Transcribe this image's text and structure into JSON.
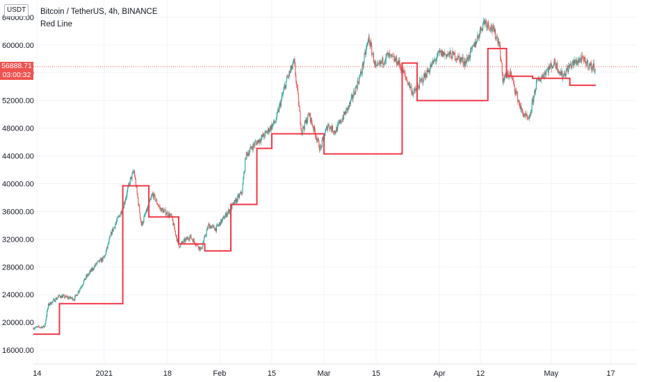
{
  "header": {
    "currency": "USDT",
    "symbol_line": "Bitcoin / TetherUS, 4h, BINANCE",
    "indicator_name": "Red Line"
  },
  "last_price": {
    "value": 56888.71,
    "label": "56888.71",
    "countdown": "03:00:32",
    "color": "#ef5350"
  },
  "colors": {
    "up": "#26a69a",
    "down": "#ef5350",
    "line": "#f23645",
    "grid": "#f0f3fa",
    "axis_text": "#131722"
  },
  "chart_data": {
    "type": "candlestick",
    "title": "Bitcoin / TetherUS, 4h, BINANCE",
    "ylim": [
      14000,
      66500
    ],
    "y_ticks": [
      16000,
      20000,
      24000,
      28000,
      32000,
      36000,
      40000,
      44000,
      48000,
      52000,
      56000,
      60000,
      64000
    ],
    "y_tick_labels": [
      "16000.00",
      "20000.00",
      "24000.00",
      "28000.00",
      "32000.00",
      "36000.00",
      "40000.00",
      "44000.00",
      "48000.00",
      "52000.00",
      "56000.00",
      "60000.00",
      "64000.00"
    ],
    "top_partial_label": "6...",
    "x_range": [
      "2020-12-13",
      "2021-05-24"
    ],
    "x_ticks": [
      {
        "date": "2020-12-14",
        "label": "14"
      },
      {
        "date": "2021-01-01",
        "label": "2021"
      },
      {
        "date": "2021-01-18",
        "label": "18"
      },
      {
        "date": "2021-02-01",
        "label": "Feb"
      },
      {
        "date": "2021-02-15",
        "label": "15"
      },
      {
        "date": "2021-03-01",
        "label": "Mar"
      },
      {
        "date": "2021-03-15",
        "label": "15"
      },
      {
        "date": "2021-04-01",
        "label": "Apr"
      },
      {
        "date": "2021-04-12",
        "label": "12"
      },
      {
        "date": "2021-05-01",
        "label": "May"
      },
      {
        "date": "2021-05-17",
        "label": "17"
      }
    ],
    "price_path": [
      [
        "2020-12-13",
        19200
      ],
      [
        "2020-12-16",
        19400
      ],
      [
        "2020-12-17",
        22500
      ],
      [
        "2020-12-20",
        23800
      ],
      [
        "2020-12-24",
        23400
      ],
      [
        "2020-12-27",
        26400
      ],
      [
        "2020-12-30",
        28500
      ],
      [
        "2021-01-01",
        29300
      ],
      [
        "2021-01-03",
        33000
      ],
      [
        "2021-01-06",
        36500
      ],
      [
        "2021-01-08",
        40500
      ],
      [
        "2021-01-09",
        41800
      ],
      [
        "2021-01-11",
        34000
      ],
      [
        "2021-01-12",
        35500
      ],
      [
        "2021-01-14",
        38500
      ],
      [
        "2021-01-16",
        36400
      ],
      [
        "2021-01-19",
        35300
      ],
      [
        "2021-01-21",
        31000
      ],
      [
        "2021-01-24",
        32400
      ],
      [
        "2021-01-27",
        30500
      ],
      [
        "2021-01-29",
        34000
      ],
      [
        "2021-01-31",
        33500
      ],
      [
        "2021-02-04",
        36500
      ],
      [
        "2021-02-07",
        38800
      ],
      [
        "2021-02-08",
        44000
      ],
      [
        "2021-02-10",
        45500
      ],
      [
        "2021-02-13",
        47000
      ],
      [
        "2021-02-16",
        49000
      ],
      [
        "2021-02-19",
        55000
      ],
      [
        "2021-02-21",
        57500
      ],
      [
        "2021-02-23",
        47500
      ],
      [
        "2021-02-25",
        50000
      ],
      [
        "2021-02-28",
        45000
      ],
      [
        "2021-03-02",
        48500
      ],
      [
        "2021-03-04",
        47500
      ],
      [
        "2021-03-08",
        51500
      ],
      [
        "2021-03-11",
        56000
      ],
      [
        "2021-03-13",
        61000
      ],
      [
        "2021-03-15",
        56500
      ],
      [
        "2021-03-18",
        58500
      ],
      [
        "2021-03-21",
        57500
      ],
      [
        "2021-03-25",
        53000
      ],
      [
        "2021-03-28",
        55500
      ],
      [
        "2021-04-01",
        58800
      ],
      [
        "2021-04-05",
        58500
      ],
      [
        "2021-04-08",
        57500
      ],
      [
        "2021-04-10",
        59500
      ],
      [
        "2021-04-13",
        63500
      ],
      [
        "2021-04-15",
        62500
      ],
      [
        "2021-04-17",
        60500
      ],
      [
        "2021-04-18",
        55000
      ],
      [
        "2021-04-20",
        56000
      ],
      [
        "2021-04-23",
        50500
      ],
      [
        "2021-04-25",
        49000
      ],
      [
        "2021-04-27",
        54500
      ],
      [
        "2021-04-30",
        56500
      ],
      [
        "2021-05-02",
        57500
      ],
      [
        "2021-05-04",
        55500
      ],
      [
        "2021-05-06",
        57000
      ],
      [
        "2021-05-09",
        58000
      ],
      [
        "2021-05-12",
        56800
      ],
      [
        "2021-05-13",
        56888
      ]
    ],
    "red_line_steps": [
      {
        "from": "2020-12-13",
        "to": "2020-12-20",
        "value": 18300
      },
      {
        "from": "2020-12-20",
        "to": "2021-01-06",
        "value": 22700
      },
      {
        "from": "2021-01-06",
        "to": "2021-01-13",
        "value": 39700
      },
      {
        "from": "2021-01-13",
        "to": "2021-01-21",
        "value": 35200
      },
      {
        "from": "2021-01-21",
        "to": "2021-01-28",
        "value": 31300
      },
      {
        "from": "2021-01-28",
        "to": "2021-02-04",
        "value": 30300
      },
      {
        "from": "2021-02-04",
        "to": "2021-02-11",
        "value": 37000
      },
      {
        "from": "2021-02-11",
        "to": "2021-02-15",
        "value": 45100
      },
      {
        "from": "2021-02-15",
        "to": "2021-03-01",
        "value": 47200
      },
      {
        "from": "2021-03-01",
        "to": "2021-03-22",
        "value": 44300
      },
      {
        "from": "2021-03-22",
        "to": "2021-03-26",
        "value": 57400
      },
      {
        "from": "2021-03-26",
        "to": "2021-04-14",
        "value": 52000
      },
      {
        "from": "2021-04-14",
        "to": "2021-04-19",
        "value": 59500
      },
      {
        "from": "2021-04-19",
        "to": "2021-04-26",
        "value": 55500
      },
      {
        "from": "2021-04-26",
        "to": "2021-05-06",
        "value": 55200
      },
      {
        "from": "2021-05-06",
        "to": "2021-05-13",
        "value": 54200
      }
    ]
  }
}
